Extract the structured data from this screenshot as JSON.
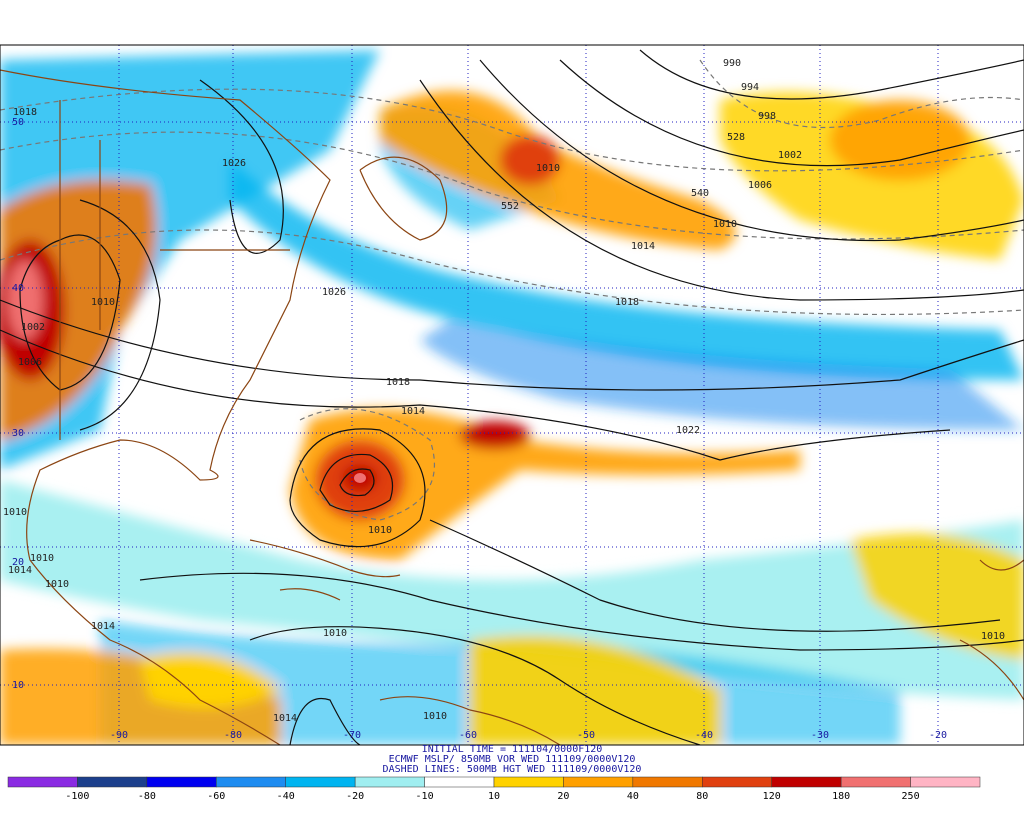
{
  "caption": {
    "line1": "INITIAL TIME = 111104/0000F120",
    "line2": "ECMWF MSLP/ 850MB VOR WED 111109/0000V120",
    "line3": "DASHED LINES: 500MB HGT WED 111109/0000V120"
  },
  "longitude_labels": [
    "-90",
    "-80",
    "-70",
    "-60",
    "-50",
    "-40",
    "-30",
    "-20"
  ],
  "latitude_labels": [
    "50",
    "40",
    "30",
    "20",
    "10"
  ],
  "contour_labels": [
    "990",
    "994",
    "998",
    "528",
    "1002",
    "1006",
    "540",
    "552",
    "1010",
    "1010",
    "1014",
    "1018",
    "1026",
    "1018",
    "1014",
    "1022",
    "1010",
    "1010",
    "1010",
    "1010",
    "1018",
    "1026",
    "1010",
    "1002",
    "1006",
    "1010",
    "1010",
    "1014",
    "1010",
    "1014",
    "1014"
  ],
  "colorbar": {
    "colors": [
      "#8a2be2",
      "#1c3f8c",
      "#0000f0",
      "#1e8cf0",
      "#00b4f0",
      "#a0eef0",
      "#ffffff",
      "#ffd200",
      "#ffa000",
      "#f07800",
      "#e04010",
      "#c00000",
      "#f07070",
      "#ffb4c4"
    ],
    "labels": [
      "-100",
      "-80",
      "-60",
      "-40",
      "-20",
      "-10",
      "10",
      "20",
      "40",
      "80",
      "120",
      "180",
      "250"
    ]
  }
}
